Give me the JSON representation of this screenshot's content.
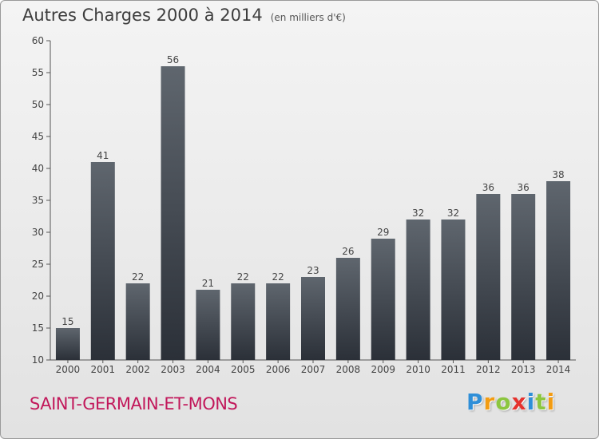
{
  "chart_data": {
    "type": "bar",
    "title": "Autres Charges 2000 à 2014",
    "subtitle": "(en milliers d'€)",
    "categories": [
      "2000",
      "2001",
      "2002",
      "2003",
      "2004",
      "2005",
      "2006",
      "2007",
      "2008",
      "2009",
      "2010",
      "2011",
      "2012",
      "2013",
      "2014"
    ],
    "values": [
      15,
      41,
      22,
      56,
      21,
      22,
      22,
      23,
      26,
      29,
      32,
      32,
      36,
      36,
      38
    ],
    "ylim": [
      10,
      60
    ],
    "yticks": [
      10,
      15,
      20,
      25,
      30,
      35,
      40,
      45,
      50,
      55,
      60
    ],
    "grid": false,
    "bar_color_top": "#5f666e",
    "bar_color_bottom": "#2b3038"
  },
  "footer": {
    "commune": "SAINT-GERMAIN-ET-MONS",
    "commune_color": "#c2185b",
    "logo_letters": [
      {
        "ch": "P",
        "color": "#2f8fd8"
      },
      {
        "ch": "r",
        "color": "#f39c12"
      },
      {
        "ch": "o",
        "color": "#8cc63f"
      },
      {
        "ch": "x",
        "color": "#e5322d"
      },
      {
        "ch": "i",
        "color": "#2f8fd8"
      },
      {
        "ch": "t",
        "color": "#8cc63f"
      },
      {
        "ch": "i",
        "color": "#f39c12"
      }
    ]
  }
}
